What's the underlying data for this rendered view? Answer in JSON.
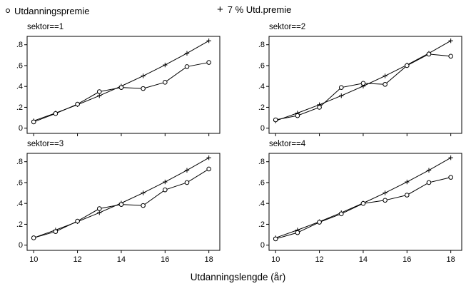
{
  "legend": {
    "series1_label": "Utdanningspremie",
    "series2_label": "7 % Utd.premie"
  },
  "chart_data": {
    "type": "line",
    "title": "",
    "xlabel": "Utdanningslengde (år)",
    "ylabel": "",
    "x": [
      10,
      11,
      12,
      13,
      14,
      15,
      16,
      17,
      18
    ],
    "x_ticks": [
      10,
      12,
      14,
      16,
      18
    ],
    "y_ticks": [
      0,
      0.2,
      0.4,
      0.6,
      0.8
    ],
    "y_tick_labels": [
      "0",
      ".2",
      ".4",
      ".6",
      ".8"
    ],
    "xlim": [
      9.7,
      18.5
    ],
    "ylim": [
      -0.05,
      0.88
    ],
    "grid": false,
    "legend_position": "top",
    "legend": [
      {
        "name": "Utdanningspremie",
        "marker": "circle"
      },
      {
        "name": "7 % Utd.premie",
        "marker": "plus"
      }
    ],
    "series_premie_7pct": [
      0.07,
      0.145,
      0.225,
      0.311,
      0.403,
      0.501,
      0.606,
      0.718,
      0.838
    ],
    "panels": [
      {
        "title": "sektor==1",
        "utdanningspremie": [
          0.06,
          0.14,
          0.23,
          0.35,
          0.39,
          0.38,
          0.44,
          0.59,
          0.63
        ]
      },
      {
        "title": "sektor==2",
        "utdanningspremie": [
          0.08,
          0.12,
          0.2,
          0.39,
          0.43,
          0.42,
          0.6,
          0.71,
          0.69
        ]
      },
      {
        "title": "sektor==3",
        "utdanningspremie": [
          0.07,
          0.13,
          0.23,
          0.35,
          0.39,
          0.38,
          0.53,
          0.6,
          0.73
        ]
      },
      {
        "title": "sektor==4",
        "utdanningspremie": [
          0.06,
          0.12,
          0.22,
          0.3,
          0.4,
          0.43,
          0.48,
          0.6,
          0.65
        ]
      }
    ]
  }
}
